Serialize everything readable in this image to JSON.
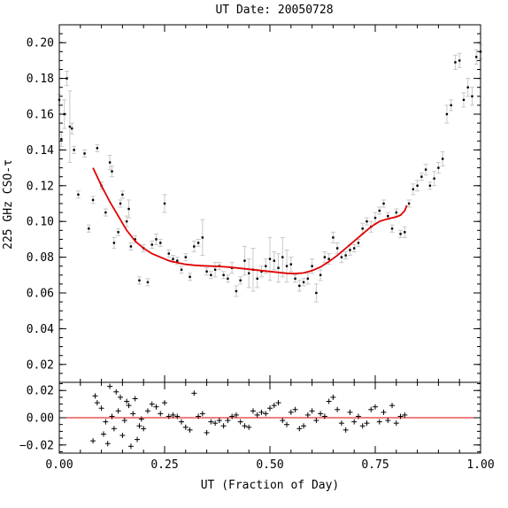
{
  "chart_data": {
    "type": "scatter",
    "title": "UT Date: 20050728",
    "xlabel": "UT (Fraction of Day)",
    "ylabel": "225 GHz CSO-τ",
    "xlim": [
      0.0,
      1.0
    ],
    "top_panel": {
      "ylim": [
        0.01,
        0.21
      ],
      "yticks": [
        0.02,
        0.04,
        0.06,
        0.08,
        0.1,
        0.12,
        0.14,
        0.16,
        0.18,
        0.2
      ],
      "ytick_labels": [
        "0.02",
        "0.04",
        "0.06",
        "0.08",
        "0.10",
        "0.12",
        "0.14",
        "0.16",
        "0.18",
        "0.20"
      ],
      "measurements": {
        "x": [
          0.0,
          0.005,
          0.012,
          0.018,
          0.025,
          0.03,
          0.035,
          0.045,
          0.06,
          0.07,
          0.08,
          0.09,
          0.1,
          0.11,
          0.12,
          0.125,
          0.13,
          0.14,
          0.145,
          0.15,
          0.16,
          0.165,
          0.17,
          0.18,
          0.19,
          0.2,
          0.21,
          0.22,
          0.23,
          0.24,
          0.25,
          0.26,
          0.27,
          0.28,
          0.29,
          0.3,
          0.31,
          0.32,
          0.33,
          0.34,
          0.35,
          0.36,
          0.37,
          0.38,
          0.39,
          0.4,
          0.41,
          0.42,
          0.43,
          0.44,
          0.45,
          0.46,
          0.47,
          0.48,
          0.49,
          0.5,
          0.51,
          0.52,
          0.53,
          0.54,
          0.55,
          0.56,
          0.57,
          0.58,
          0.59,
          0.6,
          0.61,
          0.62,
          0.63,
          0.64,
          0.65,
          0.66,
          0.67,
          0.68,
          0.69,
          0.7,
          0.71,
          0.72,
          0.73,
          0.74,
          0.75,
          0.76,
          0.77,
          0.78,
          0.79,
          0.8,
          0.81,
          0.82,
          0.83,
          0.84,
          0.85,
          0.86,
          0.87,
          0.88,
          0.89,
          0.9,
          0.91,
          0.92,
          0.93,
          0.94,
          0.95,
          0.96,
          0.97,
          0.98,
          0.99,
          1.0
        ],
        "y": [
          0.168,
          0.146,
          0.16,
          0.18,
          0.153,
          0.152,
          0.14,
          0.115,
          0.138,
          0.096,
          0.112,
          0.141,
          0.12,
          0.105,
          0.133,
          0.128,
          0.088,
          0.094,
          0.11,
          0.115,
          0.1,
          0.107,
          0.086,
          0.09,
          0.067,
          0.085,
          0.066,
          0.087,
          0.09,
          0.088,
          0.11,
          0.082,
          0.079,
          0.078,
          0.073,
          0.08,
          0.069,
          0.086,
          0.088,
          0.091,
          0.072,
          0.07,
          0.073,
          0.075,
          0.07,
          0.068,
          0.074,
          0.061,
          0.067,
          0.078,
          0.071,
          0.073,
          0.068,
          0.072,
          0.075,
          0.079,
          0.078,
          0.074,
          0.08,
          0.075,
          0.076,
          0.068,
          0.064,
          0.066,
          0.068,
          0.075,
          0.06,
          0.07,
          0.08,
          0.079,
          0.091,
          0.085,
          0.08,
          0.081,
          0.084,
          0.085,
          0.088,
          0.096,
          0.1,
          0.097,
          0.102,
          0.106,
          0.11,
          0.103,
          0.096,
          0.105,
          0.093,
          0.094,
          0.11,
          0.118,
          0.12,
          0.125,
          0.129,
          0.12,
          0.124,
          0.13,
          0.135,
          0.16,
          0.165,
          0.189,
          0.19,
          0.168,
          0.175,
          0.17,
          0.192,
          0.195
        ],
        "yerr": [
          0.003,
          0.004,
          0.008,
          0.004,
          0.02,
          0.003,
          0.002,
          0.002,
          0.002,
          0.002,
          0.002,
          0.002,
          0.002,
          0.002,
          0.004,
          0.003,
          0.003,
          0.002,
          0.002,
          0.002,
          0.003,
          0.005,
          0.002,
          0.002,
          0.002,
          0.002,
          0.002,
          0.002,
          0.003,
          0.002,
          0.005,
          0.002,
          0.002,
          0.002,
          0.002,
          0.002,
          0.002,
          0.003,
          0.002,
          0.01,
          0.002,
          0.002,
          0.004,
          0.002,
          0.002,
          0.002,
          0.003,
          0.003,
          0.002,
          0.008,
          0.008,
          0.012,
          0.005,
          0.003,
          0.004,
          0.012,
          0.005,
          0.008,
          0.011,
          0.009,
          0.004,
          0.002,
          0.003,
          0.002,
          0.003,
          0.004,
          0.005,
          0.003,
          0.003,
          0.003,
          0.003,
          0.003,
          0.003,
          0.002,
          0.003,
          0.002,
          0.002,
          0.003,
          0.002,
          0.003,
          0.003,
          0.002,
          0.002,
          0.002,
          0.002,
          0.002,
          0.002,
          0.003,
          0.002,
          0.003,
          0.003,
          0.002,
          0.003,
          0.002,
          0.004,
          0.003,
          0.004,
          0.005,
          0.003,
          0.004,
          0.004,
          0.004,
          0.005,
          0.005,
          0.004,
          0.004
        ]
      },
      "fit": {
        "x": [
          0.08,
          0.1,
          0.12,
          0.14,
          0.16,
          0.18,
          0.2,
          0.22,
          0.24,
          0.26,
          0.28,
          0.3,
          0.32,
          0.34,
          0.36,
          0.38,
          0.4,
          0.42,
          0.44,
          0.46,
          0.48,
          0.5,
          0.52,
          0.54,
          0.56,
          0.58,
          0.6,
          0.62,
          0.64,
          0.66,
          0.68,
          0.7,
          0.72,
          0.74,
          0.76,
          0.78,
          0.8,
          0.81,
          0.82,
          0.825
        ],
        "y": [
          0.13,
          0.12,
          0.111,
          0.103,
          0.095,
          0.089,
          0.085,
          0.082,
          0.08,
          0.078,
          0.077,
          0.076,
          0.0755,
          0.0752,
          0.075,
          0.0748,
          0.0745,
          0.074,
          0.0735,
          0.073,
          0.0725,
          0.072,
          0.0715,
          0.071,
          0.0708,
          0.0712,
          0.0725,
          0.0745,
          0.0775,
          0.081,
          0.085,
          0.089,
          0.093,
          0.097,
          0.1,
          0.1015,
          0.1025,
          0.1035,
          0.106,
          0.109
        ]
      }
    },
    "bottom_panel": {
      "ylim": [
        -0.026,
        0.026
      ],
      "yticks": [
        -0.02,
        0.0,
        0.02
      ],
      "ytick_labels": [
        "−0.02",
        "0.00",
        "0.02"
      ],
      "residuals": {
        "x": [
          0.08,
          0.085,
          0.09,
          0.1,
          0.105,
          0.11,
          0.115,
          0.12,
          0.125,
          0.13,
          0.135,
          0.14,
          0.145,
          0.15,
          0.155,
          0.16,
          0.165,
          0.17,
          0.175,
          0.18,
          0.185,
          0.19,
          0.195,
          0.2,
          0.21,
          0.22,
          0.23,
          0.24,
          0.25,
          0.26,
          0.27,
          0.28,
          0.29,
          0.3,
          0.31,
          0.32,
          0.33,
          0.34,
          0.35,
          0.36,
          0.37,
          0.38,
          0.39,
          0.4,
          0.41,
          0.42,
          0.43,
          0.44,
          0.45,
          0.46,
          0.47,
          0.48,
          0.49,
          0.5,
          0.51,
          0.52,
          0.53,
          0.54,
          0.55,
          0.56,
          0.57,
          0.58,
          0.59,
          0.6,
          0.61,
          0.62,
          0.63,
          0.64,
          0.65,
          0.66,
          0.67,
          0.68,
          0.69,
          0.7,
          0.71,
          0.72,
          0.73,
          0.74,
          0.75,
          0.76,
          0.77,
          0.78,
          0.79,
          0.8,
          0.81,
          0.82
        ],
        "y": [
          -0.017,
          0.016,
          0.011,
          0.007,
          -0.012,
          -0.003,
          -0.019,
          0.023,
          0.001,
          -0.008,
          0.019,
          0.005,
          0.015,
          -0.013,
          -0.002,
          0.012,
          0.009,
          -0.021,
          0.003,
          0.014,
          -0.016,
          -0.006,
          -0.001,
          -0.008,
          0.005,
          0.01,
          0.008,
          0.003,
          0.011,
          0.001,
          0.002,
          0.001,
          -0.003,
          -0.007,
          -0.009,
          0.018,
          0.001,
          0.003,
          -0.011,
          -0.003,
          -0.004,
          -0.002,
          -0.006,
          -0.002,
          0.001,
          0.002,
          -0.003,
          -0.006,
          -0.007,
          0.005,
          0.002,
          0.004,
          0.003,
          0.007,
          0.009,
          0.011,
          -0.002,
          -0.005,
          0.004,
          0.006,
          -0.008,
          -0.006,
          0.002,
          0.005,
          -0.002,
          0.003,
          0.001,
          0.012,
          0.015,
          0.006,
          -0.004,
          -0.009,
          0.004,
          -0.003,
          0.001,
          -0.006,
          -0.004,
          0.006,
          0.008,
          -0.003,
          0.004,
          -0.002,
          0.009,
          -0.004,
          0.001,
          0.002
        ]
      },
      "zero_line": 0.0
    },
    "xticks": [
      0.0,
      0.25,
      0.5,
      0.75,
      1.0
    ],
    "xtick_labels": [
      "0.00",
      "0.25",
      "0.50",
      "0.75",
      "1.00"
    ],
    "colors": {
      "fit": "#e00000",
      "zero_line": "#e00000",
      "points": "#000000",
      "errorbars": "#c8c8c8",
      "axes": "#000000"
    },
    "grid": false
  }
}
